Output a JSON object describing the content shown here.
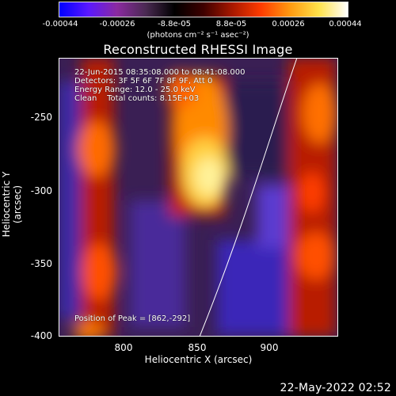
{
  "colorbar": {
    "labels": [
      "-0.00044",
      "-0.00026",
      "-8.8e-05",
      "8.8e-05",
      "0.00026",
      "0.00044"
    ],
    "units": "(photons cm⁻² s⁻¹ asec⁻²)",
    "palette": [
      "#0000ff",
      "#5a18ff",
      "#8b2aa0",
      "#4a2a52",
      "#000000",
      "#3e0000",
      "#a81800",
      "#ff3c00",
      "#ff9a10",
      "#ffe24a",
      "#ffffff"
    ]
  },
  "title": "Reconstructed RHESSI Image",
  "annotations": {
    "line1": "22-Jun-2015 08:35:08.000 to 08:41:08.000",
    "line2": "Detectors: 3F 5F 6F 7F 8F 9F, Att 0",
    "line3": "Energy Range: 12.0 - 25.0 keV",
    "line4": "Clean    Total counts: 8.15E+03",
    "peak": "Position of Peak = [862,-292]"
  },
  "axes": {
    "xlabel": "Heliocentric X (arcsec)",
    "ylabel": "Heliocentric Y (arcsec)",
    "xticks": [
      "800",
      "850",
      "900"
    ],
    "yticks": [
      "-250",
      "-300",
      "-350",
      "-400"
    ]
  },
  "timestamp": "22-May-2022 02:52"
}
